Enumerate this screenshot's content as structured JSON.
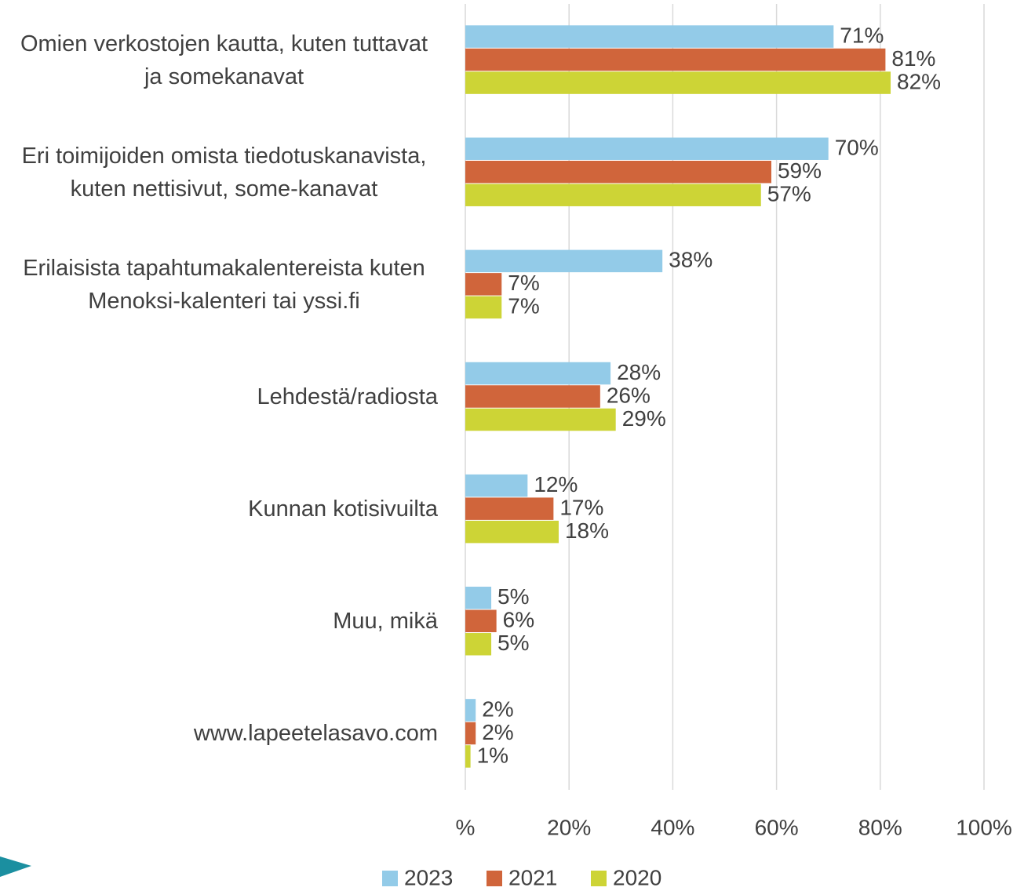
{
  "chart_data": {
    "type": "bar",
    "orientation": "horizontal",
    "categories": [
      "Omien verkostojen kautta, kuten tuttavat ja somekanavat",
      "Eri toimijoiden omista tiedotuskanavista, kuten nettisivut, some-kanavat",
      "Erilaisista tapahtumakalentereista kuten Menoksi-kalenteri tai yssi.fi",
      "Lehdestä/radiosta",
      "Kunnan kotisivuilta",
      "Muu, mikä",
      "www.lapeetelasavo.com"
    ],
    "series": [
      {
        "name": "2023",
        "color": "#93cbe8",
        "values": [
          71,
          70,
          38,
          28,
          12,
          5,
          2
        ],
        "value_labels": [
          "71%",
          "70%",
          "38%",
          "28%",
          "12%",
          "5%",
          "2%"
        ]
      },
      {
        "name": "2021",
        "color": "#d0653b",
        "values": [
          81,
          59,
          7,
          26,
          17,
          6,
          2
        ],
        "value_labels": [
          "81%",
          "59%",
          "7%",
          "26%",
          "17%",
          "6%",
          "2%"
        ]
      },
      {
        "name": "2020",
        "color": "#cdd436",
        "values": [
          82,
          57,
          7,
          29,
          18,
          5,
          1
        ],
        "value_labels": [
          "82%",
          "57%",
          "7%",
          "29%",
          "18%",
          "5%",
          "1%"
        ]
      }
    ],
    "xlim": [
      0,
      100
    ],
    "xticks": [
      {
        "value": 0,
        "label": "%"
      },
      {
        "value": 20,
        "label": "20%"
      },
      {
        "value": 40,
        "label": "40%"
      },
      {
        "value": 60,
        "label": "60%"
      },
      {
        "value": 80,
        "label": "80%"
      },
      {
        "value": 100,
        "label": "100%"
      }
    ],
    "grid": true,
    "legend": "bottom"
  }
}
